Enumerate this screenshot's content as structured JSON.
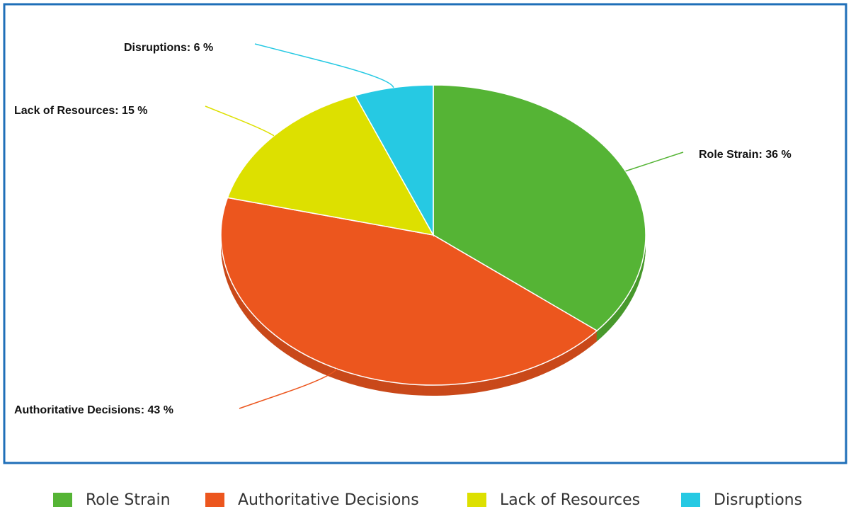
{
  "chart_data": {
    "type": "pie",
    "categories": [
      "Role Strain",
      "Authoritative Decisions",
      "Lack of Resources",
      "Disruptions"
    ],
    "values": [
      36,
      43,
      15,
      6
    ],
    "value_labels": [
      "Role Strain: 36 %",
      "Authoritative Decisions: 43 %",
      "Lack of Resources: 15 %",
      "Disruptions: 6 %"
    ],
    "colors": [
      "#55b435",
      "#ec561e",
      "#dde000",
      "#26c9e3"
    ],
    "legend": "bottom"
  }
}
